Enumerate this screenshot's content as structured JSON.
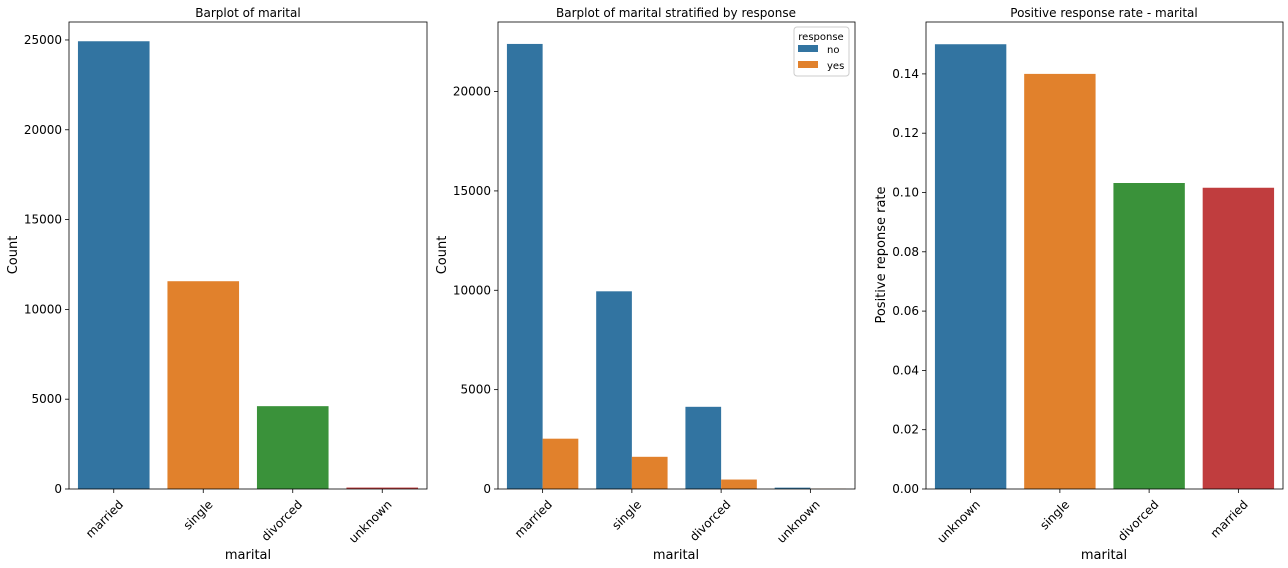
{
  "chart_data": [
    {
      "type": "bar",
      "title": "Barplot of marital",
      "xlabel": "marital",
      "ylabel": "Count",
      "categories": [
        "married",
        "single",
        "divorced",
        "unknown"
      ],
      "values": [
        24928,
        11568,
        4612,
        80
      ],
      "colors": [
        "#3274a1",
        "#e1812c",
        "#3a923a",
        "#c03d3e"
      ],
      "ylim": [
        0,
        26000
      ],
      "yticks": [
        0,
        5000,
        10000,
        15000,
        20000,
        25000
      ],
      "ytick_labels": [
        "0",
        "5000",
        "10000",
        "15000",
        "20000",
        "25000"
      ],
      "grid": false,
      "legend": "none"
    },
    {
      "type": "bar",
      "title": "Barplot of marital stratified by response",
      "xlabel": "marital",
      "ylabel": "Count",
      "categories": [
        "married",
        "single",
        "divorced",
        "unknown"
      ],
      "series": [
        {
          "name": "no",
          "color": "#3274a1",
          "values": [
            22396,
            9948,
            4136,
            68
          ]
        },
        {
          "name": "yes",
          "color": "#e1812c",
          "values": [
            2532,
            1620,
            476,
            12
          ]
        }
      ],
      "legend_title": "response",
      "legend": "top-right",
      "ylim": [
        0,
        23500
      ],
      "yticks": [
        0,
        5000,
        10000,
        15000,
        20000
      ],
      "ytick_labels": [
        "0",
        "5000",
        "10000",
        "15000",
        "20000"
      ],
      "grid": false
    },
    {
      "type": "bar",
      "title": "Positive response rate - marital",
      "xlabel": "marital",
      "ylabel": "Positive reponse rate",
      "categories": [
        "unknown",
        "single",
        "divorced",
        "married"
      ],
      "values": [
        0.15,
        0.14,
        0.1032,
        0.1016
      ],
      "colors": [
        "#3274a1",
        "#e1812c",
        "#3a923a",
        "#c03d3e"
      ],
      "ylim": [
        0,
        0.1575
      ],
      "yticks": [
        0,
        0.02,
        0.04,
        0.06,
        0.08,
        0.1,
        0.12,
        0.14
      ],
      "ytick_labels": [
        "0.00",
        "0.02",
        "0.04",
        "0.06",
        "0.08",
        "0.10",
        "0.12",
        "0.14"
      ],
      "grid": false,
      "legend": "none"
    }
  ]
}
